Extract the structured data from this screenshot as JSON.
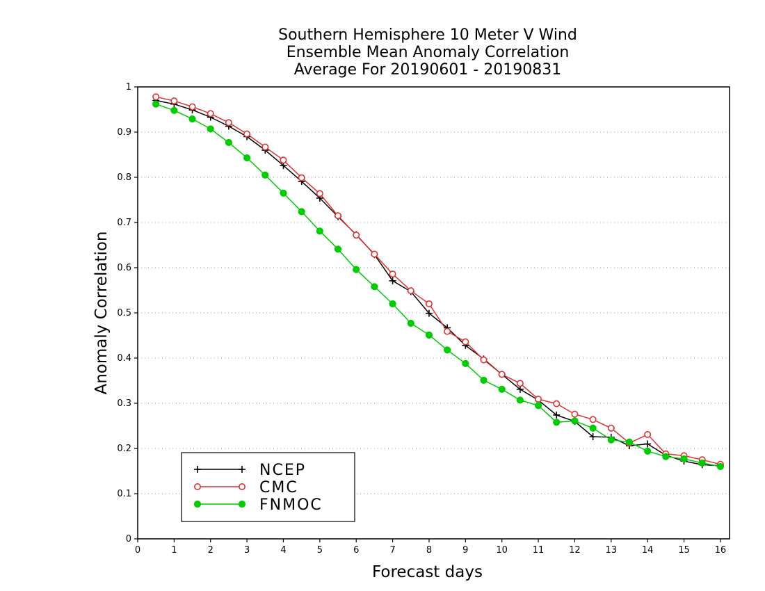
{
  "chart_data": {
    "type": "line",
    "title": [
      "Southern Hemisphere 10 Meter V Wind",
      "Ensemble Mean Anomaly Correlation",
      "Average For 20190601 - 20190831"
    ],
    "xlabel": "Forecast days",
    "ylabel": "Anomaly Correlation",
    "xlim": [
      0,
      16.25
    ],
    "ylim": [
      0,
      1
    ],
    "xticks": [
      0,
      1,
      2,
      3,
      4,
      5,
      6,
      7,
      8,
      9,
      10,
      11,
      12,
      13,
      14,
      15,
      16
    ],
    "yticks": [
      0,
      0.1,
      0.2,
      0.3,
      0.4,
      0.5,
      0.6,
      0.7,
      0.8,
      0.9,
      1
    ],
    "ytick_labels": [
      "0",
      "0.1",
      "0.2",
      "0.3",
      "0.4",
      "0.5",
      "0.6",
      "0.7",
      "0.8",
      "0.9",
      "1"
    ],
    "grid": "horizontal dotted",
    "legend_position": "bottom-left",
    "x": [
      0.5,
      1,
      1.5,
      2,
      2.5,
      3,
      3.5,
      4,
      4.5,
      5,
      5.5,
      6,
      6.5,
      7,
      7.5,
      8,
      8.5,
      9,
      9.5,
      10,
      10.5,
      11,
      11.5,
      12,
      12.5,
      13,
      13.5,
      14,
      14.5,
      15,
      15.5,
      16
    ],
    "series": [
      {
        "name": "NCEP",
        "color": "#000000",
        "marker": "plus",
        "values": [
          0.97,
          0.962,
          0.949,
          0.933,
          0.913,
          0.89,
          0.86,
          0.826,
          0.791,
          0.754,
          0.713,
          0.673,
          0.629,
          0.571,
          0.547,
          0.499,
          0.467,
          0.428,
          0.398,
          0.364,
          0.331,
          0.307,
          0.274,
          0.26,
          0.226,
          0.225,
          0.206,
          0.21,
          0.185,
          0.172,
          0.164,
          0.162
        ]
      },
      {
        "name": "CMC",
        "color": "#e03030",
        "marker": "open-circle",
        "values": [
          0.978,
          0.969,
          0.956,
          0.941,
          0.921,
          0.896,
          0.867,
          0.838,
          0.799,
          0.764,
          0.715,
          0.672,
          0.63,
          0.586,
          0.549,
          0.52,
          0.459,
          0.436,
          0.396,
          0.364,
          0.344,
          0.309,
          0.299,
          0.276,
          0.264,
          0.245,
          0.212,
          0.231,
          0.188,
          0.184,
          0.175,
          0.165
        ]
      },
      {
        "name": "FNMOC",
        "color": "#00cc00",
        "marker": "filled-circle",
        "values": [
          0.962,
          0.948,
          0.929,
          0.907,
          0.877,
          0.843,
          0.805,
          0.765,
          0.724,
          0.681,
          0.641,
          0.596,
          0.558,
          0.52,
          0.477,
          0.451,
          0.418,
          0.388,
          0.351,
          0.331,
          0.307,
          0.295,
          0.258,
          0.261,
          0.245,
          0.219,
          0.214,
          0.194,
          0.182,
          0.177,
          0.168,
          0.16
        ]
      }
    ]
  }
}
